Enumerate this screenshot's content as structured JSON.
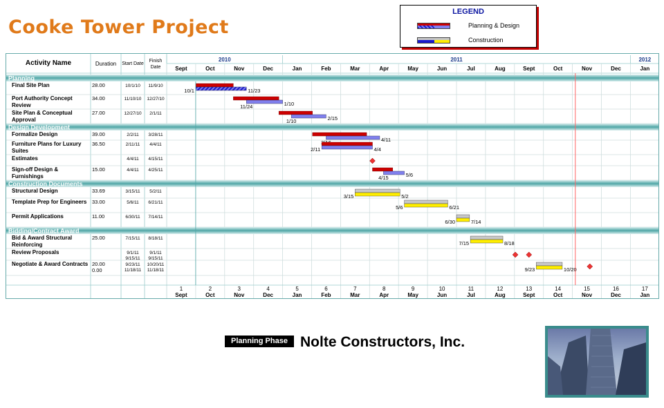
{
  "title": "Cooke Tower Project",
  "legend": {
    "title": "LEGEND",
    "items": [
      {
        "label": "Planning & Design",
        "color": "#cc0000"
      },
      {
        "label": "Construction",
        "color": "#ffee00"
      }
    ]
  },
  "company": "Nolte Constructors, Inc.",
  "phase_label": "Planning Phase",
  "colors": {
    "planning_bar": "#cc0000",
    "actual_bar": "#8080ee",
    "construction_bar": "#ffee00",
    "baseline_bar": "#c8c8c8",
    "section_band": "#4fa6a6",
    "milestone": "#ee3333",
    "today_line": "#ff6666"
  },
  "headers": {
    "activity": "Activity Name",
    "duration": "Duration",
    "start": "Start Date",
    "finish_line1": "Finish",
    "finish_line2": "Date"
  },
  "chart_data": {
    "type": "gantt",
    "years": [
      {
        "label": "2010",
        "from": 0,
        "to": 4
      },
      {
        "label": "2011",
        "from": 4,
        "to": 16
      },
      {
        "label": "2012",
        "from": 16,
        "to": 17
      }
    ],
    "months": [
      "Sept",
      "Oct",
      "Nov",
      "Dec",
      "Jan",
      "Feb",
      "Mar",
      "Apr",
      "May",
      "Jun",
      "Jul",
      "Aug",
      "Sept",
      "Oct",
      "Nov",
      "Dec",
      "Jan"
    ],
    "month_numbers": [
      "1",
      "2",
      "3",
      "4",
      "5",
      "6",
      "7",
      "8",
      "9",
      "10",
      "11",
      "12",
      "13",
      "14",
      "15",
      "16",
      "17"
    ],
    "today_month_index": 14.1,
    "rows": [
      {
        "kind": "section",
        "label": "Planning"
      },
      {
        "kind": "task",
        "name": [
          "Final Site Plan"
        ],
        "duration": [
          "28.00"
        ],
        "start": [
          "10/1/10"
        ],
        "finish": [
          "11/9/10"
        ],
        "bars": [
          {
            "type": "plan",
            "from": 1.0,
            "to": 2.3
          },
          {
            "type": "plan_actual",
            "from": 1.0,
            "to": 2.75,
            "hatch": true
          }
        ],
        "labels": [
          {
            "text": "10/1",
            "at": 1.0,
            "side": "left"
          },
          {
            "text": "11/23",
            "at": 2.75,
            "side": "right"
          }
        ]
      },
      {
        "kind": "task",
        "name": [
          "Port Authority Concept",
          "Review"
        ],
        "duration": [
          "34.00"
        ],
        "start": [
          "11/10/10"
        ],
        "finish": [
          "12/27/10"
        ],
        "bars": [
          {
            "type": "plan",
            "from": 2.3,
            "to": 3.87
          },
          {
            "type": "plan_actual",
            "from": 2.75,
            "to": 4.0
          }
        ],
        "labels": [
          {
            "text": "11/24",
            "at": 2.75,
            "side": "below"
          },
          {
            "text": "1/10",
            "at": 4.0,
            "side": "right"
          }
        ]
      },
      {
        "kind": "task",
        "name": [
          "Site Plan & Conceptual",
          "Approval"
        ],
        "duration": [
          "27.00"
        ],
        "start": [
          "12/27/10"
        ],
        "finish": [
          "2/1/11"
        ],
        "bars": [
          {
            "type": "plan",
            "from": 3.87,
            "to": 5.03
          },
          {
            "type": "plan_actual",
            "from": 4.3,
            "to": 5.5
          }
        ],
        "labels": [
          {
            "text": "1/10",
            "at": 4.3,
            "side": "below"
          },
          {
            "text": "2/15",
            "at": 5.5,
            "side": "right"
          }
        ]
      },
      {
        "kind": "section",
        "label": "Design Development"
      },
      {
        "kind": "task",
        "name": [
          "Formalize Design"
        ],
        "duration": [
          "39.00"
        ],
        "start": [
          "2/2/11"
        ],
        "finish": [
          "3/28/11"
        ],
        "bars": [
          {
            "type": "plan",
            "from": 5.03,
            "to": 6.9
          },
          {
            "type": "plan_actual",
            "from": 5.5,
            "to": 7.35
          }
        ],
        "labels": [
          {
            "text": "2/16",
            "at": 5.5,
            "side": "below"
          },
          {
            "text": "4/11",
            "at": 7.35,
            "side": "right"
          }
        ]
      },
      {
        "kind": "task",
        "name": [
          "Furniture Plans for Luxury",
          "Suites"
        ],
        "duration": [
          "36.50"
        ],
        "start": [
          "2/11/11"
        ],
        "finish": [
          "4/4/11"
        ],
        "bars": [
          {
            "type": "plan",
            "from": 5.35,
            "to": 7.1
          },
          {
            "type": "plan_actual",
            "from": 5.35,
            "to": 7.1
          }
        ],
        "labels": [
          {
            "text": "2/11",
            "at": 5.35,
            "side": "left"
          },
          {
            "text": "4/4",
            "at": 7.1,
            "side": "right"
          }
        ]
      },
      {
        "kind": "task",
        "name": [
          "   Estimates"
        ],
        "duration": [
          ""
        ],
        "start": [
          "4/4/11"
        ],
        "finish": [
          "4/15/11"
        ],
        "bars": [],
        "milestones": [
          7.1
        ],
        "labels": []
      },
      {
        "kind": "task",
        "name": [
          "Sign-off Design &",
          "Furnishings"
        ],
        "duration": [
          "15.00"
        ],
        "start": [
          "4/4/11"
        ],
        "finish": [
          "4/25/11"
        ],
        "bars": [
          {
            "type": "plan",
            "from": 7.1,
            "to": 7.8
          },
          {
            "type": "plan_actual",
            "from": 7.48,
            "to": 8.2
          }
        ],
        "labels": [
          {
            "text": "4/15",
            "at": 7.48,
            "side": "below"
          },
          {
            "text": "5/6",
            "at": 8.2,
            "side": "right"
          }
        ]
      },
      {
        "kind": "section",
        "label": "Construction Documents"
      },
      {
        "kind": "task",
        "name": [
          "Structural Design"
        ],
        "duration": [
          "33.69"
        ],
        "start": [
          "3/15/11"
        ],
        "finish": [
          "5/2/11"
        ],
        "bars": [
          {
            "type": "baseline",
            "from": 6.5,
            "to": 8.05
          },
          {
            "type": "con",
            "from": 6.5,
            "to": 8.05
          }
        ],
        "labels": [
          {
            "text": "3/15",
            "at": 6.5,
            "side": "left"
          },
          {
            "text": "5/2",
            "at": 8.05,
            "side": "right"
          }
        ]
      },
      {
        "kind": "task",
        "name": [
          "Template Prep for Engineers"
        ],
        "duration": [
          "33.00"
        ],
        "start": [
          "5/6/11"
        ],
        "finish": [
          "6/21/11"
        ],
        "bars": [
          {
            "type": "baseline",
            "from": 8.2,
            "to": 9.7
          },
          {
            "type": "con",
            "from": 8.2,
            "to": 9.7
          }
        ],
        "labels": [
          {
            "text": "5/6",
            "at": 8.2,
            "side": "left"
          },
          {
            "text": "6/21",
            "at": 9.7,
            "side": "right"
          }
        ]
      },
      {
        "kind": "task",
        "name": [
          "Permit Applications"
        ],
        "duration": [
          "11.00"
        ],
        "start": [
          "6/30/11"
        ],
        "finish": [
          "7/14/11"
        ],
        "bars": [
          {
            "type": "baseline",
            "from": 10.0,
            "to": 10.45
          },
          {
            "type": "con",
            "from": 10.0,
            "to": 10.45
          }
        ],
        "labels": [
          {
            "text": "6/30",
            "at": 10.0,
            "side": "left"
          },
          {
            "text": "7/14",
            "at": 10.45,
            "side": "right"
          }
        ]
      },
      {
        "kind": "section",
        "label": "Bidding/Contract Award"
      },
      {
        "kind": "task",
        "name": [
          "Bid & Award Structural",
          "Reinforcing"
        ],
        "duration": [
          "25.00"
        ],
        "start": [
          "7/15/11"
        ],
        "finish": [
          "8/18/11"
        ],
        "bars": [
          {
            "type": "baseline",
            "from": 10.48,
            "to": 11.6
          },
          {
            "type": "con",
            "from": 10.48,
            "to": 11.6
          }
        ],
        "labels": [
          {
            "text": "7/15",
            "at": 10.48,
            "side": "left"
          },
          {
            "text": "8/18",
            "at": 11.6,
            "side": "right"
          }
        ]
      },
      {
        "kind": "task",
        "name": [
          "Review Proposals"
        ],
        "duration": [
          ""
        ],
        "start": [
          "9/1/11",
          "9/15/11"
        ],
        "finish": [
          "9/1/11",
          "9/15/11"
        ],
        "bars": [],
        "milestones": [
          12.03,
          12.5
        ],
        "labels": []
      },
      {
        "kind": "task",
        "name": [
          "Negotiate & Award Contracts"
        ],
        "duration": [
          "20.00",
          "0.00"
        ],
        "start": [
          "9/23/11",
          "11/18/11"
        ],
        "finish": [
          "10/20/11",
          "11/18/11"
        ],
        "bars": [
          {
            "type": "baseline",
            "from": 12.75,
            "to": 13.65
          },
          {
            "type": "con",
            "from": 12.75,
            "to": 13.65
          }
        ],
        "milestones": [
          14.6
        ],
        "labels": [
          {
            "text": "9/23",
            "at": 12.75,
            "side": "left"
          },
          {
            "text": "10/20",
            "at": 13.65,
            "side": "right"
          }
        ]
      }
    ]
  }
}
